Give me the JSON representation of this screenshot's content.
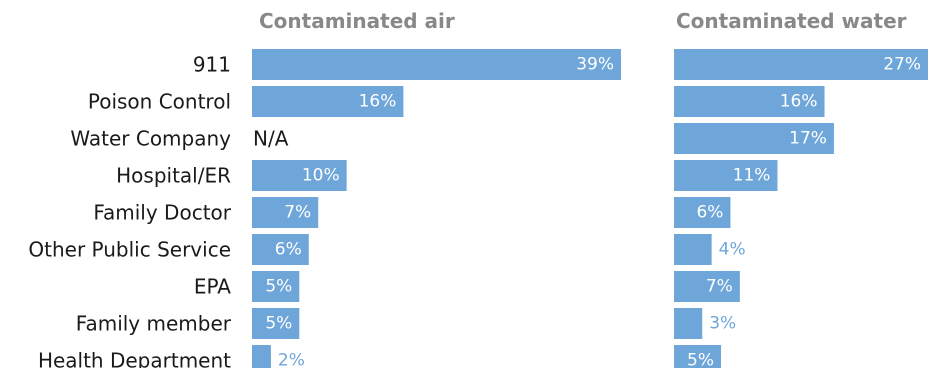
{
  "chart_data": {
    "type": "bar",
    "orientation": "horizontal",
    "categories": [
      "911",
      "Poison Control",
      "Water Company",
      "Hospital/ER",
      "Family Doctor",
      "Other Public Service",
      "EPA",
      "Family member",
      "Health Department"
    ],
    "series": [
      {
        "name": "Contaminated air",
        "values": [
          39,
          16,
          null,
          10,
          7,
          6,
          5,
          5,
          2
        ],
        "labels": [
          "39%",
          "16%",
          "N/A",
          "10%",
          "7%",
          "6%",
          "5%",
          "5%",
          "2%"
        ]
      },
      {
        "name": "Contaminated water",
        "values": [
          27,
          16,
          17,
          11,
          6,
          4,
          7,
          3,
          5
        ],
        "labels": [
          "27%",
          "16%",
          "17%",
          "11%",
          "6%",
          "4%",
          "7%",
          "3%",
          "5%"
        ]
      }
    ],
    "xlim": [
      0,
      39
    ],
    "grid": false,
    "legend": "none",
    "colors": {
      "bar": "#6fa6d9",
      "label_inside": "#ffffff",
      "label_outside": "#6fa6d9",
      "title": "#888888",
      "category": "#1a1a1a"
    }
  }
}
